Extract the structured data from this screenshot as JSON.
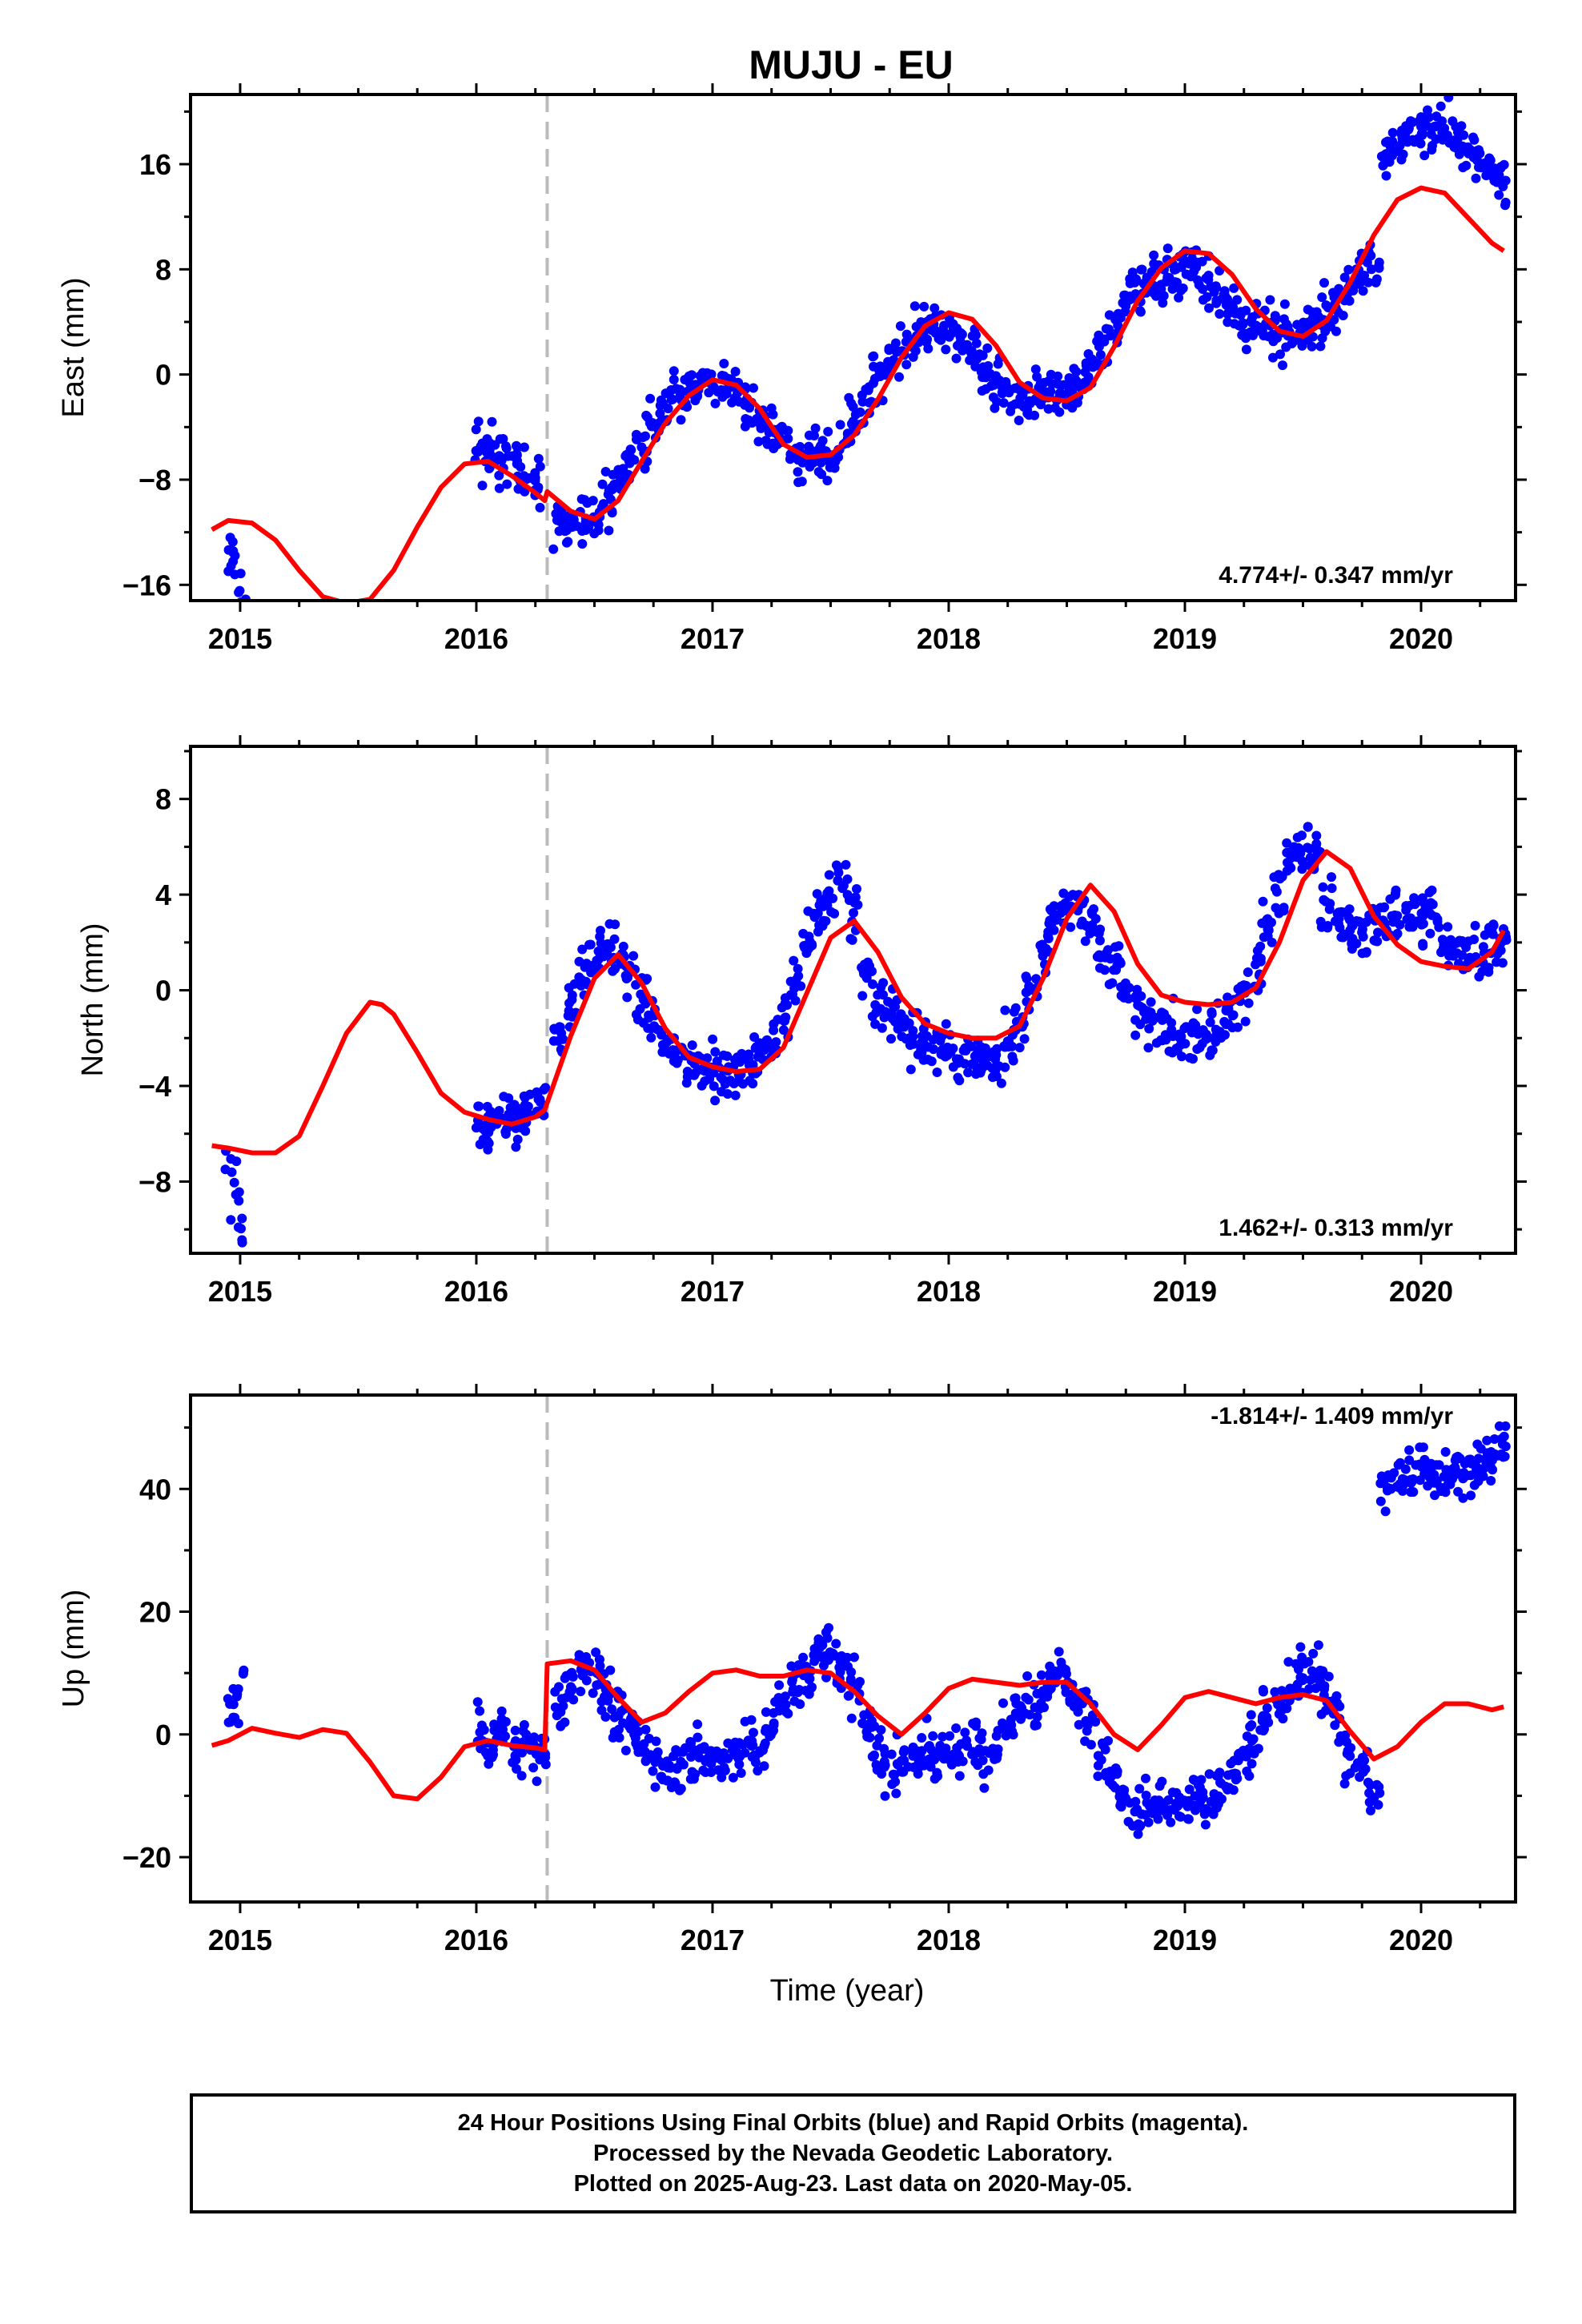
{
  "title": "MUJU - EU",
  "xlabel": "Time (year)",
  "footer": {
    "line1": "24 Hour Positions Using Final Orbits (blue) and Rapid Orbits (magenta).",
    "line2": "Processed by the Nevada Geodetic Laboratory.",
    "line3": "Plotted on 2025-Aug-23. Last data on 2020-May-05."
  },
  "colors": {
    "final": "#0000ff",
    "model": "#ff0000",
    "event_line": "#bbbbbb",
    "frame": "#000000"
  },
  "chart_data": [
    {
      "type": "scatter",
      "ylabel": "East (mm)",
      "rate_label": "4.774+/- 0.347 mm/yr",
      "xlim": [
        2014.79,
        2020.4
      ],
      "ylim": [
        -17.2,
        21.3
      ],
      "x_ticks": [
        2015,
        2016,
        2017,
        2018,
        2019,
        2020
      ],
      "y_ticks": [
        -16,
        -8,
        0,
        8,
        16
      ],
      "event_lines": [
        2016.3
      ],
      "grid": false,
      "series": [
        {
          "x": [
            2014.96,
            2014.98,
            2015.0,
            2016.02,
            2016.05,
            2016.1,
            2016.15,
            2016.2,
            2016.25,
            2016.35,
            2016.4,
            2016.45,
            2016.5,
            2016.55,
            2016.6,
            2016.65,
            2016.7,
            2016.75,
            2016.8,
            2016.85,
            2016.9,
            2016.95,
            2017.0,
            2017.05,
            2017.1,
            2017.15,
            2017.2,
            2017.25,
            2017.3,
            2017.35,
            2017.4,
            2017.45,
            2017.5,
            2017.55,
            2017.6,
            2017.65,
            2017.7,
            2017.75,
            2017.8,
            2017.85,
            2017.9,
            2017.95,
            2018.0,
            2018.05,
            2018.1,
            2018.15,
            2018.2,
            2018.25,
            2018.3,
            2018.35,
            2018.4,
            2018.45,
            2018.5,
            2018.55,
            2018.6,
            2018.65,
            2018.7,
            2018.75,
            2018.8,
            2018.85,
            2018.9,
            2018.95,
            2019.0,
            2019.05,
            2019.1,
            2019.15,
            2019.2,
            2019.25,
            2019.3,
            2019.35,
            2019.4,
            2019.45,
            2019.5,
            2019.55,
            2019.6,
            2019.65,
            2019.7,
            2019.75,
            2019.8,
            2019.85,
            2019.9,
            2019.95,
            2020.0,
            2020.05,
            2020.1,
            2020.15,
            2020.2,
            2020.25,
            2020.3,
            2020.34
          ],
          "y": [
            -13.6,
            -14.5,
            -15.8,
            -5.5,
            -6.4,
            -6.6,
            -6.0,
            -7.4,
            -8.3,
            -11.2,
            -11.6,
            -11.3,
            -10.9,
            -9.6,
            -8.0,
            -6.5,
            -5.0,
            -3.5,
            -2.3,
            -1.5,
            -1.1,
            -0.6,
            -0.4,
            -0.6,
            -1.0,
            -1.9,
            -3.4,
            -4.3,
            -5.3,
            -5.9,
            -6.3,
            -6.2,
            -5.9,
            -5.1,
            -3.7,
            -2.0,
            -0.4,
            1.0,
            2.0,
            2.9,
            3.5,
            3.6,
            3.2,
            2.8,
            1.8,
            0.8,
            -0.5,
            -1.3,
            -1.8,
            -2.0,
            -1.8,
            -1.5,
            -1.2,
            -0.6,
            0.7,
            2.1,
            3.9,
            5.4,
            6.6,
            7.0,
            7.1,
            7.6,
            7.9,
            7.6,
            6.8,
            5.9,
            4.8,
            3.8,
            3.4,
            3.5,
            3.3,
            3.2,
            3.4,
            3.6,
            4.5,
            5.4,
            6.6,
            7.8,
            8.4,
            16.8,
            17.5,
            18.3,
            18.5,
            18.7,
            18.4,
            18.0,
            17.0,
            16.2,
            15.6,
            15.1
          ]
        },
        {
          "x": [
            2014.88,
            2014.95,
            2015.05,
            2015.15,
            2015.25,
            2015.35,
            2015.45,
            2015.55,
            2015.65,
            2015.75,
            2015.85,
            2015.95,
            2016.05,
            2016.15,
            2016.25,
            2016.29,
            2016.3,
            2016.4,
            2016.5,
            2016.6,
            2016.7,
            2016.8,
            2016.9,
            2017.0,
            2017.1,
            2017.2,
            2017.3,
            2017.4,
            2017.5,
            2017.6,
            2017.7,
            2017.8,
            2017.9,
            2018.0,
            2018.1,
            2018.2,
            2018.3,
            2018.4,
            2018.5,
            2018.6,
            2018.7,
            2018.8,
            2018.9,
            2019.0,
            2019.1,
            2019.2,
            2019.3,
            2019.4,
            2019.5,
            2019.6,
            2019.7,
            2019.8,
            2019.9,
            2020.0,
            2020.1,
            2020.2,
            2020.3,
            2020.35
          ],
          "y": [
            -11.8,
            -11.1,
            -11.3,
            -12.6,
            -14.9,
            -16.9,
            -17.4,
            -17.1,
            -14.9,
            -11.6,
            -8.6,
            -6.8,
            -6.6,
            -7.7,
            -9.0,
            -9.6,
            -8.9,
            -10.4,
            -11.0,
            -9.6,
            -6.6,
            -3.7,
            -1.6,
            -0.4,
            -0.8,
            -2.6,
            -5.3,
            -6.3,
            -6.1,
            -4.6,
            -1.9,
            1.3,
            3.7,
            4.7,
            4.2,
            2.2,
            -0.6,
            -1.8,
            -2.0,
            -1.0,
            2.1,
            5.6,
            8.1,
            9.4,
            9.2,
            7.6,
            5.0,
            3.3,
            2.9,
            4.1,
            7.0,
            10.6,
            13.3,
            14.2,
            13.8,
            11.9,
            10.0,
            9.4
          ]
        }
      ]
    },
    {
      "type": "scatter",
      "ylabel": "North (mm)",
      "rate_label": "1.462+/- 0.313 mm/yr",
      "xlim": [
        2014.79,
        2020.4
      ],
      "ylim": [
        -11.0,
        10.2
      ],
      "x_ticks": [
        2015,
        2016,
        2017,
        2018,
        2019,
        2020
      ],
      "y_ticks": [
        -8,
        -4,
        0,
        4,
        8
      ],
      "event_lines": [
        2016.3
      ],
      "grid": false,
      "series": [
        {
          "x": [
            2014.96,
            2014.98,
            2015.0,
            2016.02,
            2016.07,
            2016.12,
            2016.17,
            2016.22,
            2016.27,
            2016.35,
            2016.4,
            2016.45,
            2016.5,
            2016.55,
            2016.6,
            2016.65,
            2016.7,
            2016.75,
            2016.8,
            2016.85,
            2016.9,
            2016.95,
            2017.0,
            2017.05,
            2017.1,
            2017.15,
            2017.2,
            2017.25,
            2017.3,
            2017.35,
            2017.4,
            2017.45,
            2017.5,
            2017.55,
            2017.6,
            2017.65,
            2017.7,
            2017.75,
            2017.8,
            2017.85,
            2017.9,
            2017.95,
            2018.0,
            2018.05,
            2018.1,
            2018.15,
            2018.2,
            2018.25,
            2018.3,
            2018.35,
            2018.4,
            2018.45,
            2018.5,
            2018.55,
            2018.6,
            2018.65,
            2018.7,
            2018.75,
            2018.8,
            2018.85,
            2018.9,
            2018.95,
            2019.0,
            2019.05,
            2019.1,
            2019.15,
            2019.2,
            2019.25,
            2019.3,
            2019.35,
            2019.4,
            2019.45,
            2019.5,
            2019.55,
            2019.6,
            2019.65,
            2019.7,
            2019.75,
            2019.8,
            2019.85,
            2019.9,
            2019.95,
            2020.0,
            2020.05,
            2020.1,
            2020.15,
            2020.2,
            2020.25,
            2020.3,
            2020.34
          ],
          "y": [
            -7.6,
            -8.5,
            -10.0,
            -5.5,
            -5.8,
            -5.3,
            -5.6,
            -5.0,
            -4.8,
            -2.1,
            -0.6,
            0.5,
            1.4,
            1.9,
            1.6,
            0.7,
            -0.5,
            -1.4,
            -2.2,
            -2.6,
            -2.9,
            -3.2,
            -3.4,
            -3.5,
            -3.4,
            -3.2,
            -2.7,
            -2.4,
            -1.3,
            0.4,
            2.1,
            3.3,
            3.9,
            4.3,
            3.1,
            1.0,
            -0.6,
            -1.1,
            -1.4,
            -1.9,
            -2.2,
            -2.5,
            -2.4,
            -2.5,
            -2.8,
            -3.0,
            -3.1,
            -2.3,
            -1.4,
            0.0,
            1.5,
            2.7,
            3.6,
            3.6,
            2.9,
            1.8,
            1.0,
            0.0,
            -0.7,
            -1.2,
            -1.4,
            -1.6,
            -1.9,
            -2.0,
            -2.0,
            -1.6,
            -1.0,
            -0.2,
            1.0,
            2.6,
            4.3,
            5.7,
            6.2,
            5.4,
            3.5,
            2.6,
            2.4,
            2.3,
            2.8,
            3.2,
            3.1,
            3.2,
            3.0,
            3.1,
            2.0,
            1.9,
            1.5,
            1.6,
            1.9,
            2.4
          ]
        },
        {
          "x": [
            2014.88,
            2014.95,
            2015.05,
            2015.15,
            2015.25,
            2015.35,
            2015.45,
            2015.55,
            2015.6,
            2015.65,
            2015.75,
            2015.85,
            2015.95,
            2016.05,
            2016.15,
            2016.25,
            2016.29,
            2016.3,
            2016.4,
            2016.5,
            2016.6,
            2016.7,
            2016.8,
            2016.9,
            2017.0,
            2017.1,
            2017.2,
            2017.3,
            2017.4,
            2017.5,
            2017.6,
            2017.7,
            2017.8,
            2017.9,
            2018.0,
            2018.1,
            2018.2,
            2018.3,
            2018.4,
            2018.5,
            2018.6,
            2018.7,
            2018.8,
            2018.9,
            2019.0,
            2019.1,
            2019.2,
            2019.3,
            2019.4,
            2019.5,
            2019.6,
            2019.7,
            2019.8,
            2019.9,
            2020.0,
            2020.1,
            2020.2,
            2020.3,
            2020.35
          ],
          "y": [
            -6.5,
            -6.6,
            -6.8,
            -6.8,
            -6.1,
            -4.0,
            -1.8,
            -0.5,
            -0.6,
            -1.0,
            -2.6,
            -4.3,
            -5.1,
            -5.4,
            -5.6,
            -5.3,
            -5.0,
            -4.7,
            -1.9,
            0.5,
            1.5,
            0.3,
            -1.6,
            -2.8,
            -3.2,
            -3.4,
            -3.3,
            -2.4,
            -0.1,
            2.2,
            2.9,
            1.6,
            -0.3,
            -1.4,
            -1.8,
            -2.0,
            -2.0,
            -1.5,
            0.5,
            3.0,
            4.4,
            3.3,
            1.1,
            -0.2,
            -0.5,
            -0.6,
            -0.5,
            0.1,
            2.0,
            4.6,
            5.8,
            5.1,
            3.1,
            1.9,
            1.2,
            1.0,
            0.9,
            1.6,
            2.5
          ]
        }
      ]
    },
    {
      "type": "scatter",
      "ylabel": "Up (mm)",
      "rate_label": "-1.814+/- 1.409 mm/yr",
      "xlim": [
        2014.79,
        2020.4
      ],
      "ylim": [
        -27.3,
        55.3
      ],
      "x_ticks": [
        2015,
        2016,
        2017,
        2018,
        2019,
        2020
      ],
      "y_ticks": [
        -20,
        0,
        20,
        40
      ],
      "event_lines": [
        2016.3
      ],
      "grid": false,
      "series": [
        {
          "x": [
            2014.96,
            2014.98,
            2015.0,
            2016.02,
            2016.07,
            2016.12,
            2016.17,
            2016.22,
            2016.27,
            2016.35,
            2016.4,
            2016.45,
            2016.5,
            2016.55,
            2016.6,
            2016.65,
            2016.7,
            2016.75,
            2016.8,
            2016.85,
            2016.9,
            2016.95,
            2017.0,
            2017.05,
            2017.1,
            2017.15,
            2017.2,
            2017.25,
            2017.3,
            2017.35,
            2017.4,
            2017.45,
            2017.5,
            2017.55,
            2017.6,
            2017.65,
            2017.7,
            2017.75,
            2017.8,
            2017.85,
            2017.9,
            2017.95,
            2018.0,
            2018.05,
            2018.1,
            2018.15,
            2018.2,
            2018.25,
            2018.3,
            2018.35,
            2018.4,
            2018.45,
            2018.5,
            2018.55,
            2018.6,
            2018.65,
            2018.7,
            2018.75,
            2018.8,
            2018.85,
            2018.9,
            2018.95,
            2019.0,
            2019.05,
            2019.1,
            2019.15,
            2019.2,
            2019.25,
            2019.3,
            2019.35,
            2019.4,
            2019.45,
            2019.5,
            2019.55,
            2019.6,
            2019.65,
            2019.7,
            2019.75,
            2019.8,
            2019.85,
            2019.9,
            2019.95,
            2020.0,
            2020.05,
            2020.1,
            2020.15,
            2020.2,
            2020.25,
            2020.3,
            2020.34
          ],
          "y": [
            2.5,
            5.0,
            8.0,
            0.5,
            -1.5,
            1.0,
            -4.0,
            -2.0,
            -5.0,
            5.0,
            8.0,
            11.0,
            10.0,
            6.0,
            4.0,
            1.0,
            -1.5,
            -4.0,
            -5.0,
            -6.0,
            -4.5,
            -3.0,
            -4.0,
            -3.5,
            -3.0,
            -1.5,
            -2.0,
            2.0,
            5.0,
            8.5,
            10.5,
            13.0,
            14.5,
            11.0,
            7.0,
            2.0,
            -3.0,
            -6.0,
            -5.5,
            -4.5,
            -3.0,
            -4.0,
            -4.5,
            -2.5,
            -1.0,
            -3.5,
            -2.0,
            2.0,
            3.5,
            5.0,
            7.0,
            9.0,
            8.5,
            6.0,
            2.0,
            -3.0,
            -8.0,
            -11.0,
            -13.0,
            -12.0,
            -11.0,
            -13.0,
            -12.5,
            -10.5,
            -11.0,
            -9.5,
            -7.0,
            -4.5,
            -1.5,
            2.0,
            5.0,
            8.0,
            9.5,
            9.5,
            6.5,
            2.0,
            -3.0,
            -5.0,
            -9.0,
            40.0,
            41.5,
            42.5,
            44.0,
            42.0,
            41.5,
            43.0,
            42.5,
            44.0,
            45.0,
            46.0
          ]
        },
        {
          "x": [
            2014.88,
            2014.95,
            2015.05,
            2015.15,
            2015.25,
            2015.35,
            2015.45,
            2015.55,
            2015.65,
            2015.75,
            2015.85,
            2015.95,
            2016.05,
            2016.15,
            2016.25,
            2016.29,
            2016.3,
            2016.4,
            2016.5,
            2016.6,
            2016.7,
            2016.8,
            2016.9,
            2017.0,
            2017.1,
            2017.2,
            2017.3,
            2017.4,
            2017.5,
            2017.6,
            2017.7,
            2017.8,
            2017.9,
            2018.0,
            2018.1,
            2018.2,
            2018.3,
            2018.4,
            2018.5,
            2018.6,
            2018.7,
            2018.8,
            2018.9,
            2019.0,
            2019.1,
            2019.2,
            2019.3,
            2019.4,
            2019.5,
            2019.6,
            2019.7,
            2019.8,
            2019.9,
            2020.0,
            2020.1,
            2020.2,
            2020.3,
            2020.35
          ],
          "y": [
            -1.8,
            -1.0,
            1.0,
            0.2,
            -0.5,
            0.8,
            0.2,
            -4.5,
            -10.0,
            -10.5,
            -7.0,
            -2.0,
            -1.0,
            -1.8,
            -2.2,
            -2.5,
            11.5,
            12.0,
            10.5,
            6.0,
            2.0,
            3.5,
            7.0,
            10.0,
            10.5,
            9.5,
            9.5,
            10.5,
            10.0,
            7.0,
            3.0,
            0.0,
            3.5,
            7.5,
            9.0,
            8.5,
            8.0,
            8.5,
            8.5,
            5.0,
            0.0,
            -2.5,
            1.5,
            6.0,
            7.0,
            6.0,
            5.0,
            6.0,
            6.5,
            5.5,
            0.5,
            -4.0,
            -2.0,
            2.0,
            5.0,
            5.0,
            4.0,
            4.5
          ]
        }
      ]
    }
  ]
}
